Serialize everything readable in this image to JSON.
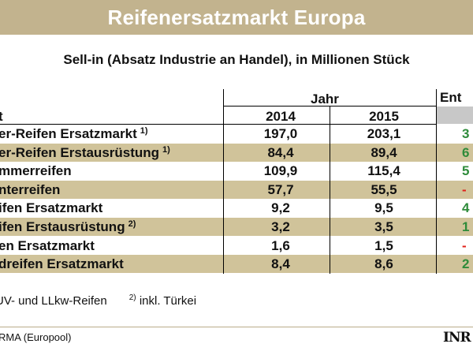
{
  "title": "Reifenersatzmarkt Europa",
  "subtitle": "Sell-in (Absatz Industrie an Handel), in Millionen Stück",
  "header": {
    "group_label": "Jahr",
    "change_label": "Ent",
    "first_col": "t",
    "years": [
      "2014",
      "2015"
    ]
  },
  "rows": [
    {
      "label": "er-Reifen Ersatzmarkt",
      "note": "1)",
      "v2014": "197,0",
      "v2015": "203,1",
      "change": "3",
      "trend": "pos",
      "shaded": false
    },
    {
      "label": "er-Reifen Erstausrüstung",
      "note": "1)",
      "v2014": "84,4",
      "v2015": "89,4",
      "change": "6",
      "trend": "pos",
      "shaded": true
    },
    {
      "label": "mmerreifen",
      "note": "",
      "v2014": "109,9",
      "v2015": "115,4",
      "change": "5",
      "trend": "pos",
      "shaded": false
    },
    {
      "label": "nterreifen",
      "note": "",
      "v2014": "57,7",
      "v2015": "55,5",
      "change": "-",
      "trend": "neg",
      "shaded": true
    },
    {
      "label": "ifen Ersatzmarkt",
      "note": "",
      "v2014": "9,2",
      "v2015": "9,5",
      "change": "4",
      "trend": "pos",
      "shaded": false
    },
    {
      "label": "ifen Erstausrüstung",
      "note": "2)",
      "v2014": "3,2",
      "v2015": "3,5",
      "change": "1",
      "trend": "pos",
      "shaded": true
    },
    {
      "label": "en Ersatzmarkt",
      "note": "",
      "v2014": "1,6",
      "v2015": "1,5",
      "change": "-",
      "trend": "neg",
      "shaded": false
    },
    {
      "label": "dreifen Ersatzmarkt",
      "note": "",
      "v2014": "8,4",
      "v2015": "8,6",
      "change": "2",
      "trend": "pos",
      "shaded": true
    }
  ],
  "footnote": {
    "part1": "UV- und LLkw-Reifen",
    "mark2": "2)",
    "part2": "inkl. Türkei"
  },
  "source": "RMA (Europool)",
  "logo": "INR"
}
